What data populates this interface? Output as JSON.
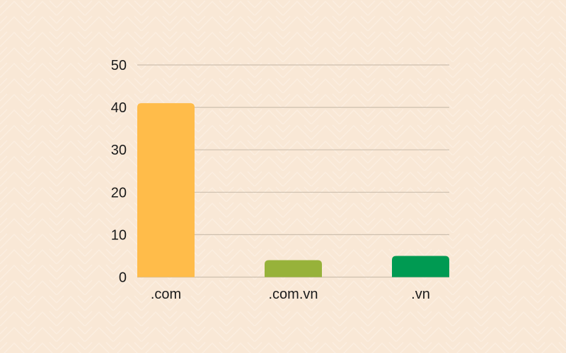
{
  "chart_data": {
    "type": "bar",
    "categories": [
      ".com",
      ".com.vn",
      ".vn"
    ],
    "values": [
      41,
      4,
      5
    ],
    "colors": [
      "#ffbc4a",
      "#97b23a",
      "#009a52"
    ],
    "ylim": [
      0,
      50
    ],
    "yticks": [
      0,
      10,
      20,
      30,
      40,
      50
    ],
    "grid": true,
    "background_color": "#f9e8d6",
    "grid_color": "#cdbfae"
  }
}
